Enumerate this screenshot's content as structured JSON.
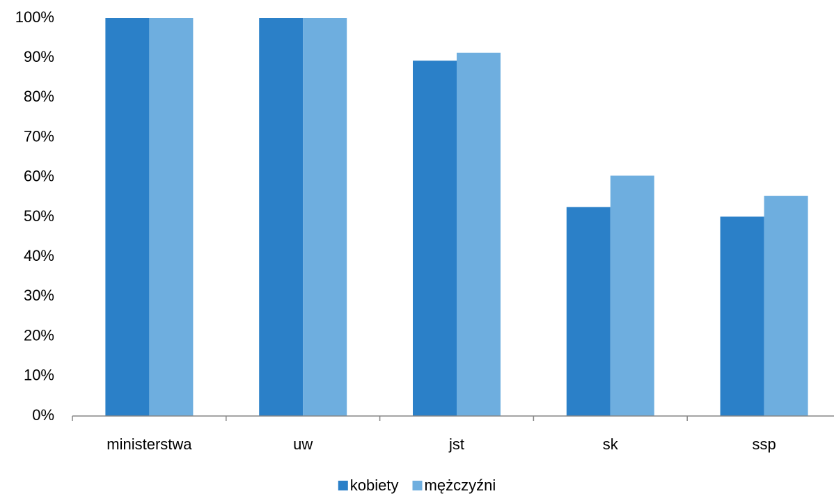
{
  "chart_data": {
    "type": "bar",
    "categories": [
      "ministerstwa",
      "uw",
      "jst",
      "sk",
      "ssp"
    ],
    "series": [
      {
        "name": "kobiety",
        "color": "#2b80c8",
        "values": [
          100,
          100,
          89.3,
          52.5,
          50.1
        ]
      },
      {
        "name": "mężczyźni",
        "color": "#6eaedf",
        "values": [
          100,
          100,
          91.3,
          60.4,
          55.3
        ]
      }
    ],
    "ylim": [
      0,
      100
    ],
    "yticks": [
      {
        "value": 0,
        "label": "0%"
      },
      {
        "value": 10,
        "label": "10%"
      },
      {
        "value": 20,
        "label": "20%"
      },
      {
        "value": 30,
        "label": "30%"
      },
      {
        "value": 40,
        "label": "40%"
      },
      {
        "value": 50,
        "label": "50%"
      },
      {
        "value": 60,
        "label": "60%"
      },
      {
        "value": 70,
        "label": "70%"
      },
      {
        "value": 80,
        "label": "80%"
      },
      {
        "value": 90,
        "label": "90%"
      },
      {
        "value": 100,
        "label": "100%"
      }
    ],
    "grid": false,
    "legend": "bottom"
  }
}
